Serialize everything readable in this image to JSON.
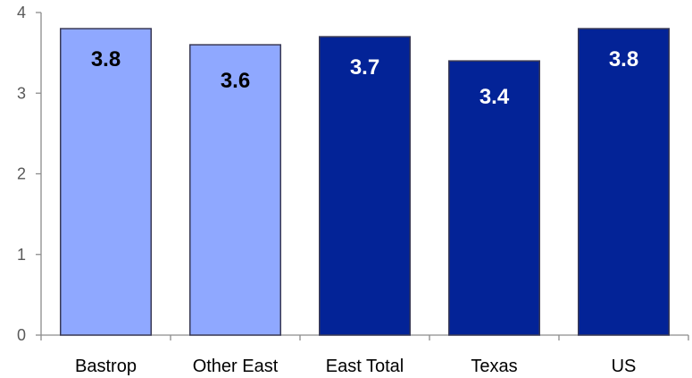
{
  "chart_data": {
    "type": "bar",
    "title": "",
    "xlabel": "",
    "ylabel": "",
    "categories": [
      "Bastrop",
      "Other East",
      "East Total",
      "Texas",
      "US"
    ],
    "values": [
      3.8,
      3.6,
      3.7,
      3.4,
      3.8
    ],
    "data_labels": [
      "3.8",
      "3.6",
      "3.7",
      "3.4",
      "3.8"
    ],
    "bar_colors": [
      "#8FA8FF",
      "#8FA8FF",
      "#032397",
      "#032397",
      "#032397"
    ],
    "label_colors": [
      "#000000",
      "#000000",
      "#ffffff",
      "#ffffff",
      "#ffffff"
    ],
    "bar_border_color": "#3a3a55",
    "ylim": [
      0,
      4
    ],
    "yticks": [
      0,
      1,
      2,
      3,
      4
    ],
    "ytick_labels": [
      "0",
      "1",
      "2",
      "3",
      "4"
    ],
    "grid": false,
    "legend": "none"
  }
}
